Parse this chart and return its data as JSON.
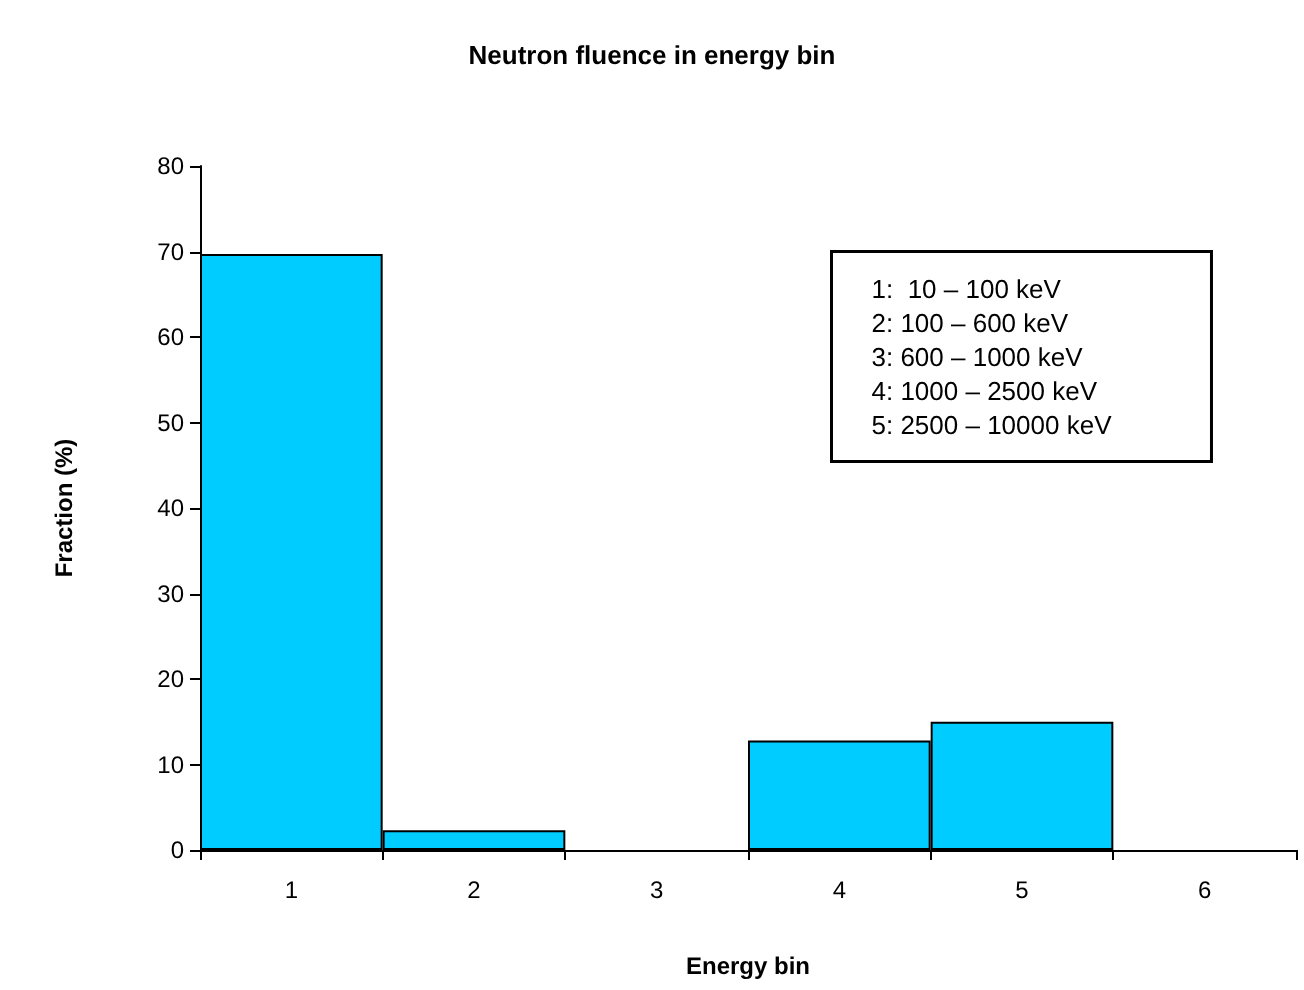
{
  "chart_data": {
    "type": "bar",
    "title": "Neutron fluence in energy bin",
    "xlabel": "Energy bin",
    "ylabel": "Fraction (%)",
    "categories": [
      "1",
      "2",
      "3",
      "4",
      "5",
      "6"
    ],
    "values": [
      69.7,
      2.3,
      null,
      12.8,
      15.0,
      null
    ],
    "color": "#00ccff",
    "ylim": [
      0,
      80
    ],
    "yticks": [
      0,
      10,
      20,
      30,
      40,
      50,
      60,
      70,
      80
    ],
    "grid": false,
    "annotations": [
      "1:  10 – 100 keV",
      "2: 100 – 600 keV",
      "3: 600 – 1000 keV",
      "4: 1000 – 2500 keV",
      "5: 2500 – 10000 keV"
    ]
  }
}
